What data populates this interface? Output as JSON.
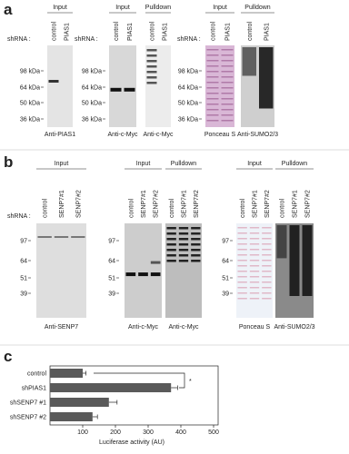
{
  "panel_a": {
    "label": "a",
    "shrna_label": "shRNA :",
    "markers": [
      "98 kDa",
      "64 kDa",
      "50 kDa",
      "36 kDa"
    ],
    "lanes": [
      "control",
      "PIAS1"
    ],
    "blots": [
      {
        "header": "Input",
        "antibody": "Anti-PIAS1"
      },
      {
        "header": "Input",
        "antibody": "Anti-c-Myc"
      },
      {
        "header": "Pulldown",
        "antibody": "Anti-c-Myc"
      },
      {
        "header": "Input",
        "antibody": "Ponceau S"
      },
      {
        "header": "Pulldown",
        "antibody": "Anti-SUMO2/3"
      }
    ]
  },
  "panel_b": {
    "label": "b",
    "shrna_label": "shRNA :",
    "markers": [
      "97",
      "64",
      "51",
      "39"
    ],
    "lanes": [
      "control",
      "SENP7#1",
      "SENP7#2"
    ],
    "blots": [
      {
        "header": "Input",
        "antibody": "Anti-SENP7"
      },
      {
        "header": "Input",
        "antibody": "Anti-c-Myc"
      },
      {
        "header": "Pulldown",
        "antibody": "Anti-c-Myc"
      },
      {
        "header": "Input",
        "antibody": "Ponceau S"
      },
      {
        "header": "Pulldown",
        "antibody": "Anti-SUMO2/3"
      }
    ]
  },
  "panel_c": {
    "label": "c"
  },
  "chart_data": {
    "type": "hbar",
    "categories": [
      "control",
      "shPIAS1",
      "shSENP7 #1",
      "shSENP7 #2"
    ],
    "values": [
      100,
      370,
      180,
      130
    ],
    "errors": [
      10,
      20,
      25,
      15
    ],
    "color": "#5a5a5a",
    "xlabel": "Luciferase activity (AU)",
    "xlim": [
      0,
      500
    ],
    "xticks": [
      100,
      200,
      300,
      400,
      500
    ],
    "annotation": "*"
  }
}
